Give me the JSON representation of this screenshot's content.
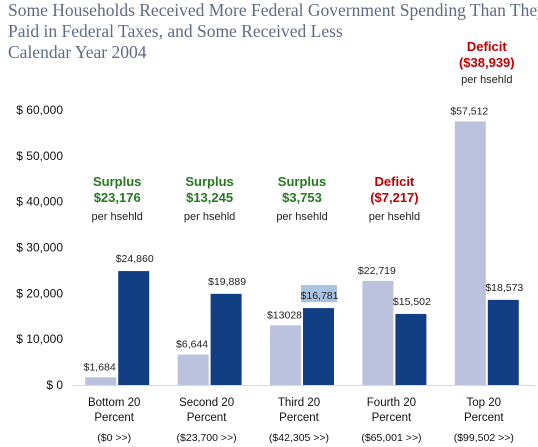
{
  "header": {
    "title_lines": [
      "Some Households Received More Federal Government Spending Than They",
      "Paid in Federal Taxes, and Some Received Less",
      "Calendar Year 2004"
    ]
  },
  "colors": {
    "spending_bar": "#bcc1de",
    "taxes_bar": "#123f84",
    "surplus_text": "#247a1e",
    "deficit_text": "#c00000",
    "highlight_label_bg": "#a9c3e2",
    "title_text": "#5f6b85"
  },
  "chart_data": {
    "type": "bar",
    "title": "Some Households Received More Federal Government Spending Than They Paid in Federal Taxes, and Some Received Less Calendar Year 2004",
    "categories": [
      [
        "Bottom 20",
        "Percent",
        "($0 >>)"
      ],
      [
        "Second 20",
        "Percent",
        "($23,700 >>)"
      ],
      [
        "Third 20",
        "Percent",
        "($42,305 >>)"
      ],
      [
        "Fourth 20",
        "Percent",
        "($65,001 >>)"
      ],
      [
        "Top 20",
        "Percent",
        "($99,502 >>)"
      ]
    ],
    "series": [
      {
        "values": [
          1684,
          6644,
          13028,
          22719,
          57512
        ],
        "labels": [
          "$1,684",
          "$6,644",
          "$13028",
          "$22,719",
          "$57,512"
        ]
      },
      {
        "values": [
          24860,
          19889,
          16781,
          15502,
          18573
        ],
        "labels": [
          "$24,860",
          "$19,889",
          "$16,781",
          "$15,502",
          "$18,573"
        ]
      }
    ],
    "ylim": [
      0,
      60000
    ],
    "yticks": [
      0,
      10000,
      20000,
      30000,
      40000,
      50000,
      60000
    ],
    "ytick_labels": [
      "$ 0",
      "$ 10,000",
      "$ 20,000",
      "$ 30,000",
      "$ 40,000",
      "$ 50,000",
      "$ 60,000"
    ],
    "grid": false,
    "annotations": [
      {
        "kind": "surplus",
        "heading": "Surplus",
        "amount": "$23,176",
        "unit": "per hsehld"
      },
      {
        "kind": "surplus",
        "heading": "Surplus",
        "amount": "$13,245",
        "unit": "per hsehld"
      },
      {
        "kind": "surplus",
        "heading": "Surplus",
        "amount": "$3,753",
        "unit": "per hsehld"
      },
      {
        "kind": "deficit",
        "heading": "Deficit",
        "amount": "($7,217)",
        "unit": "per hsehld"
      },
      {
        "kind": "deficit",
        "heading": "Deficit",
        "amount": "($38,939)",
        "unit": "per hsehld"
      }
    ]
  }
}
